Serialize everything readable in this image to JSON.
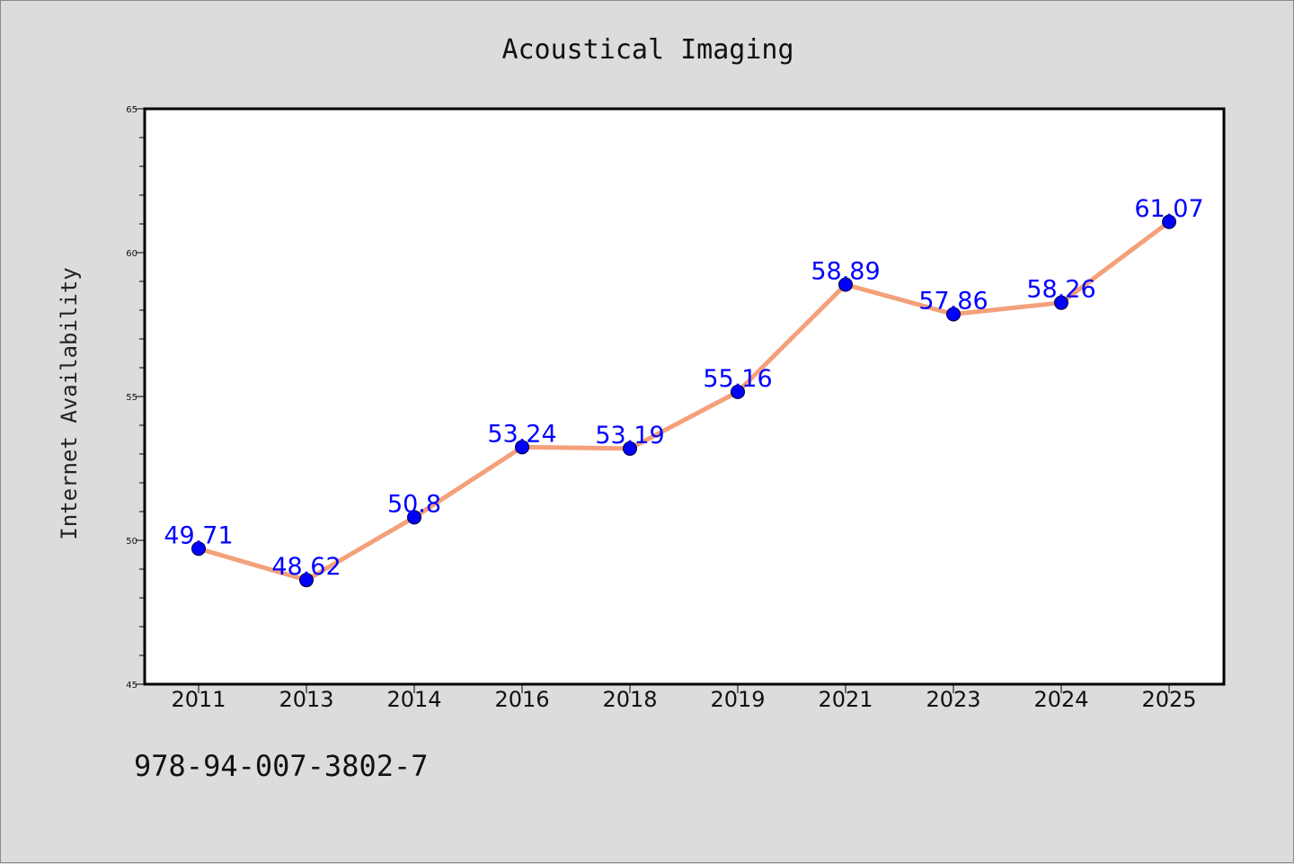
{
  "chart_data": {
    "type": "line",
    "title": "Acoustical Imaging",
    "xlabel": "",
    "ylabel": "Internet Availability",
    "categories": [
      "2011",
      "2013",
      "2014",
      "2016",
      "2018",
      "2019",
      "2021",
      "2023",
      "2024",
      "2025"
    ],
    "series": [
      {
        "values": [
          49.71,
          48.62,
          50.8,
          53.24,
          53.19,
          55.16,
          58.89,
          57.86,
          58.26,
          61.07
        ],
        "data_labels": [
          "49.71",
          "48.62",
          "50.8",
          "53.24",
          "53.19",
          "55.16",
          "58.89",
          "57.86",
          "58.26",
          "61.07"
        ],
        "line_color": "#f4a07a",
        "marker_color": "#0000ff"
      }
    ],
    "ylim": [
      45,
      65
    ],
    "yticks": [
      45,
      50,
      55,
      60,
      65
    ],
    "ytick_labels": [
      "45",
      "50",
      "55",
      "60",
      "65"
    ],
    "y_minor_step": 1,
    "grid": false,
    "legend": "none"
  },
  "footer": {
    "note": "978-94-007-3802-7"
  },
  "colors": {
    "background": "#dcdcdc",
    "plot_background": "#ffffff",
    "label_color": "#0000ff"
  }
}
